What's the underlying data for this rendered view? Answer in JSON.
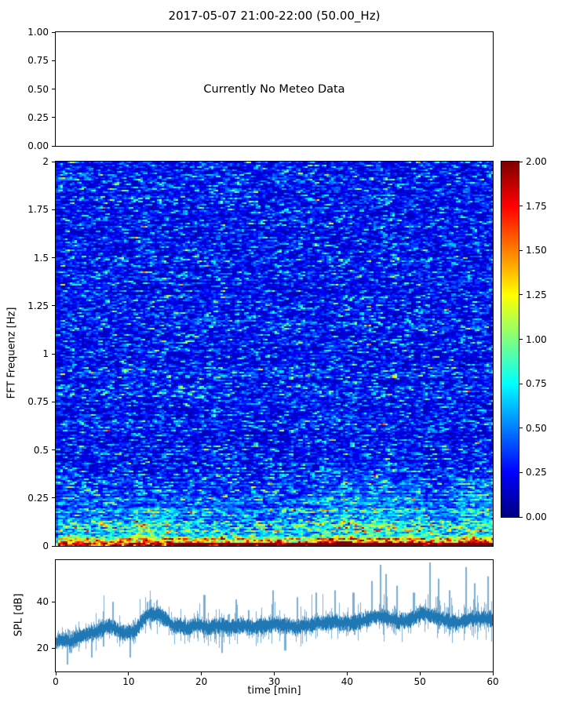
{
  "figure": {
    "title": "2017-05-07 21:00-22:00 (50.00_Hz)",
    "background": "#ffffff",
    "spine_color": "#000000"
  },
  "chart_data": [
    {
      "panel": "meteo",
      "type": "text",
      "annotation": "Currently No Meteo Data",
      "ylim": [
        0,
        1
      ],
      "yticks": [
        "1.00",
        "0.75",
        "0.50",
        "0.25",
        "0.00"
      ]
    },
    {
      "panel": "spectrogram",
      "type": "heatmap",
      "ylabel": "FFT Frequenz [Hz]",
      "ylim": [
        0,
        2
      ],
      "yticks": [
        "2",
        "1.75",
        "1.5",
        "1.25",
        "1",
        "0.75",
        "0.5",
        "0.25",
        "0"
      ],
      "x_range_minutes": [
        0,
        60
      ],
      "colormap": "jet",
      "value_range": [
        0,
        2
      ],
      "colorbar_ticks": [
        "2.00",
        "1.75",
        "1.50",
        "1.25",
        "1.00",
        "0.75",
        "0.50",
        "0.25",
        "0.00"
      ],
      "pattern": "Stochastic noise field, mostly 0.1-0.6 (dark to medium blue) with short horizontal cyan streaks near 1.0; power increases below 0.35 Hz reaching 1.5-2.0 (orange/red speckle) at the lowest frequencies; slightly elevated green/yellow patch around 36-50 min below 0.55 Hz and after 55 min below 0.35 Hz"
    },
    {
      "panel": "spl",
      "type": "line",
      "ylabel": "SPL [dB]",
      "xlabel": "time [min]",
      "xlim": [
        0,
        60
      ],
      "ylim": [
        10,
        58
      ],
      "xticks": [
        "0",
        "10",
        "20",
        "30",
        "40",
        "50",
        "60"
      ],
      "yticks": [
        "20",
        "40"
      ],
      "line_color": "#1f77b4",
      "series": [
        {
          "name": "SPL",
          "x_minutes_start": 0,
          "x_minutes_step": 1,
          "mean_db": [
            23,
            24,
            23,
            25,
            26,
            27,
            28,
            30,
            29,
            27,
            27,
            28,
            33,
            35,
            35,
            33,
            30,
            30,
            29,
            30,
            30,
            29,
            30,
            30,
            29,
            30,
            30,
            29,
            30,
            30,
            31,
            30,
            30,
            29,
            30,
            30,
            31,
            31,
            32,
            31,
            31,
            31,
            32,
            33,
            34,
            34,
            33,
            32,
            32,
            33,
            35,
            35,
            34,
            33,
            32,
            31,
            32,
            33,
            33,
            33,
            33
          ]
        }
      ],
      "spikes": [
        {
          "t": 7.8,
          "db": 40
        },
        {
          "t": 12.6,
          "db": 40
        },
        {
          "t": 20.4,
          "db": 43
        },
        {
          "t": 24.8,
          "db": 41
        },
        {
          "t": 29.8,
          "db": 45
        },
        {
          "t": 33.2,
          "db": 42
        },
        {
          "t": 35.8,
          "db": 44
        },
        {
          "t": 38.4,
          "db": 45
        },
        {
          "t": 40.9,
          "db": 44
        },
        {
          "t": 43.4,
          "db": 49
        },
        {
          "t": 44.6,
          "db": 56
        },
        {
          "t": 45.4,
          "db": 52
        },
        {
          "t": 46.9,
          "db": 47
        },
        {
          "t": 49.2,
          "db": 44
        },
        {
          "t": 51.4,
          "db": 57
        },
        {
          "t": 52.6,
          "db": 50
        },
        {
          "t": 54.1,
          "db": 45
        },
        {
          "t": 56.4,
          "db": 55
        },
        {
          "t": 57.6,
          "db": 48
        },
        {
          "t": 59.4,
          "db": 51
        }
      ],
      "dips": [
        {
          "t": 1.6,
          "db": 13
        },
        {
          "t": 4.9,
          "db": 16
        },
        {
          "t": 10.2,
          "db": 16
        },
        {
          "t": 22.8,
          "db": 18
        },
        {
          "t": 31.5,
          "db": 19
        }
      ]
    }
  ]
}
